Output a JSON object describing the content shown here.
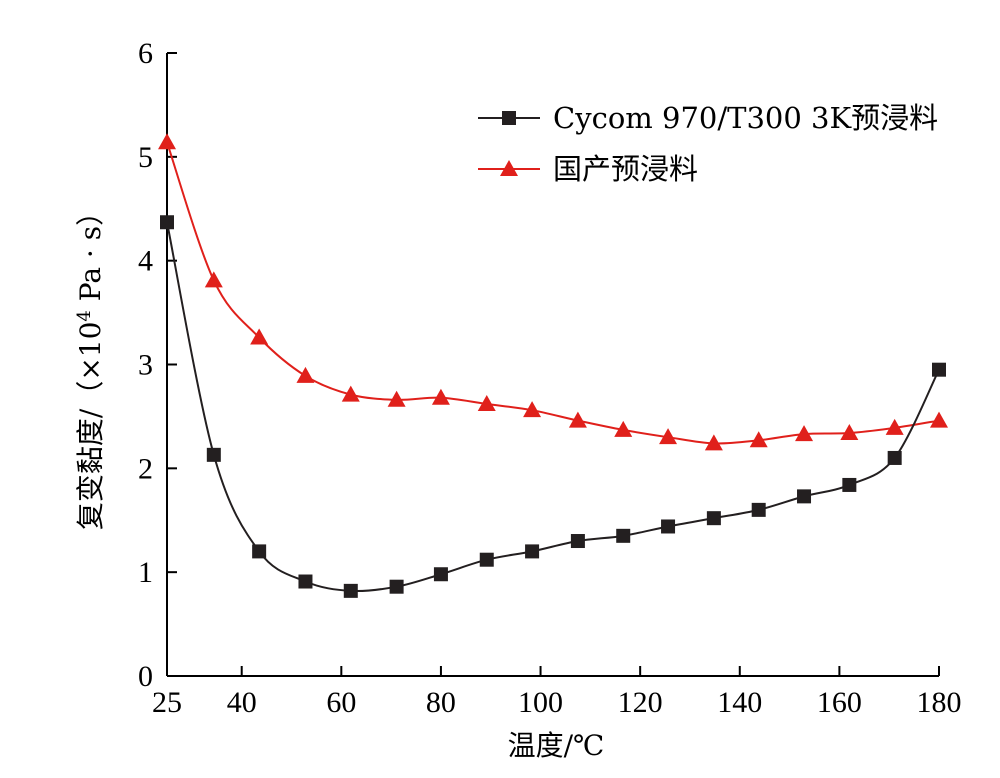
{
  "chart_data": {
    "type": "line",
    "xlabel": "温度/℃",
    "ylabel_main": "复变黏度/（×10",
    "ylabel_sup": "4",
    "ylabel_end": " Pa · s）",
    "xlim": [
      25,
      180
    ],
    "ylim": [
      0,
      6
    ],
    "x_ticks": [
      25,
      40,
      60,
      80,
      100,
      120,
      140,
      160,
      180
    ],
    "y_ticks": [
      0,
      1,
      2,
      3,
      4,
      5,
      6
    ],
    "legend_position": "top-right",
    "series": [
      {
        "name": "Cycom 970/T300 3K预浸料",
        "color": "#231f20",
        "marker": "square",
        "x": [
          25,
          34.4,
          43.5,
          52.8,
          61.9,
          71.1,
          80.0,
          89.2,
          98.3,
          107.5,
          116.6,
          125.6,
          134.8,
          143.8,
          152.9,
          162.0,
          171.1,
          180
        ],
        "y": [
          4.37,
          2.13,
          1.2,
          0.91,
          0.82,
          0.86,
          0.98,
          1.12,
          1.2,
          1.3,
          1.35,
          1.44,
          1.52,
          1.6,
          1.73,
          1.84,
          2.1,
          2.95
        ]
      },
      {
        "name": "国产预浸料",
        "color": "#e0201b",
        "marker": "triangle",
        "x": [
          25,
          34.4,
          43.5,
          52.8,
          61.9,
          71.1,
          80.0,
          89.2,
          98.3,
          107.5,
          116.6,
          125.6,
          134.8,
          143.8,
          152.9,
          162.0,
          171.1,
          180
        ],
        "y": [
          5.14,
          3.81,
          3.26,
          2.89,
          2.71,
          2.66,
          2.68,
          2.62,
          2.56,
          2.46,
          2.37,
          2.3,
          2.24,
          2.27,
          2.33,
          2.34,
          2.39,
          2.46
        ]
      }
    ]
  }
}
